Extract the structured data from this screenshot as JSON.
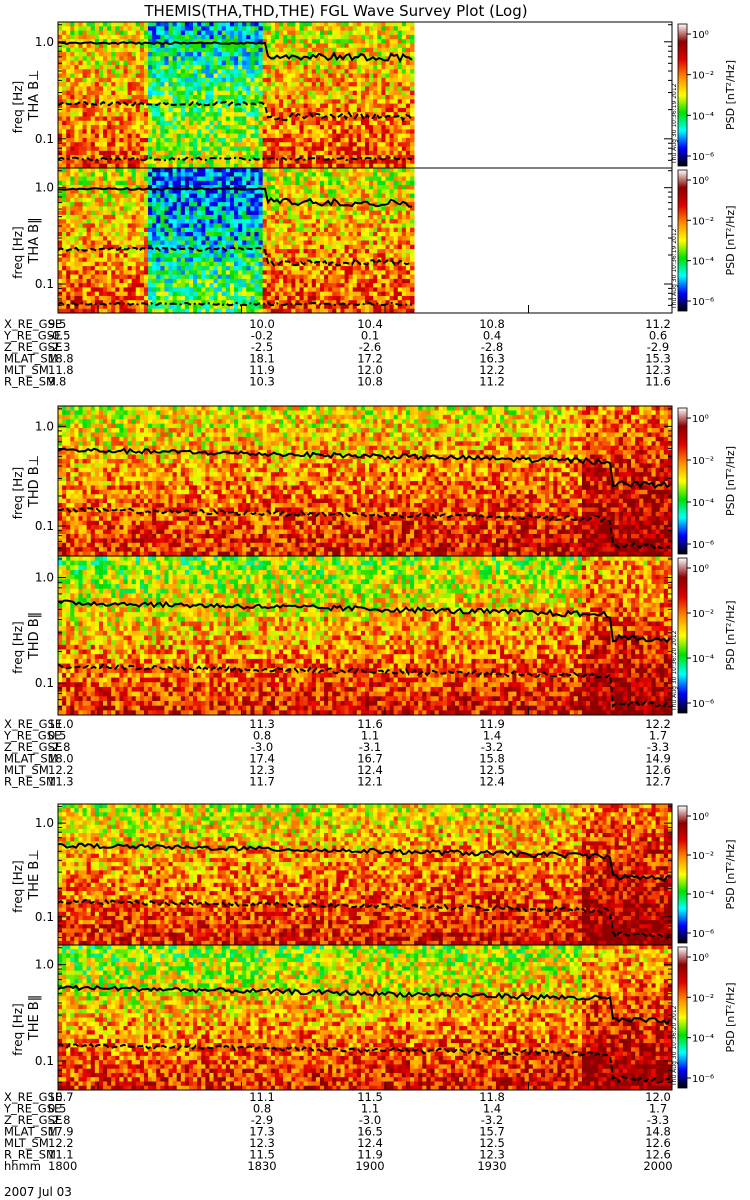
{
  "title": "THEMIS(THA,THD,THE) FGL Wave Survey Plot (Log)",
  "footer_date": "2007 Jul 03",
  "colorbar": {
    "label": "PSD [nT²/Hz]",
    "ticks": [
      "10⁰",
      "10⁻²",
      "10⁻⁴",
      "10⁻⁶"
    ],
    "stops": [
      "#ffffff",
      "#8b0000",
      "#e00000",
      "#ff8c00",
      "#ffff00",
      "#00e000",
      "#00ffff",
      "#0000ff",
      "#000000"
    ]
  },
  "freq_ticks": [
    "1.0",
    "0.1"
  ],
  "chart_data": [
    {
      "type": "heatmap",
      "probe": "THA",
      "panels": [
        {
          "ylabel": "THA B⊥",
          "yunit": "freq [Hz]",
          "timestamp": "Thu Aug 30 10:36:19 2012"
        },
        {
          "ylabel": "THA B‖",
          "yunit": "freq [Hz]",
          "timestamp": "Thu Aug 30 10:36:19 2012"
        }
      ],
      "yrange_hz": [
        0.05,
        1.6
      ],
      "data_coverage_fraction": 0.58,
      "ephemeris": [
        {
          "label": "X_RE_GSE",
          "values": [
            "9.5",
            "10.0",
            "10.4",
            "10.8",
            "11.2"
          ]
        },
        {
          "label": "Y_RE_GSE",
          "values": [
            "-0.5",
            "-0.2",
            "0.1",
            "0.4",
            "0.6"
          ]
        },
        {
          "label": "Z_RE_GSE",
          "values": [
            "-2.3",
            "-2.5",
            "-2.6",
            "-2.8",
            "-2.9"
          ]
        },
        {
          "label": "MLAT_SM",
          "values": [
            "18.8",
            "18.1",
            "17.2",
            "16.3",
            "15.3"
          ]
        },
        {
          "label": "MLT_SM",
          "values": [
            "11.8",
            "11.9",
            "12.0",
            "12.2",
            "12.3"
          ]
        },
        {
          "label": "R_RE_SM",
          "values": [
            "9.8",
            "10.3",
            "10.8",
            "11.2",
            "11.6"
          ]
        }
      ]
    },
    {
      "type": "heatmap",
      "probe": "THD",
      "panels": [
        {
          "ylabel": "THD B⊥",
          "yunit": "freq [Hz]",
          "timestamp": ""
        },
        {
          "ylabel": "THD B‖",
          "yunit": "freq [Hz]",
          "timestamp": "Thu Aug 30 10:36:20 2012"
        }
      ],
      "yrange_hz": [
        0.05,
        1.6
      ],
      "data_coverage_fraction": 1.0,
      "ephemeris": [
        {
          "label": "X_RE_GSE",
          "values": [
            "11.0",
            "11.3",
            "11.6",
            "11.9",
            "12.2"
          ]
        },
        {
          "label": "Y_RE_GSE",
          "values": [
            "0.5",
            "0.8",
            "1.1",
            "1.4",
            "1.7"
          ]
        },
        {
          "label": "Z_RE_GSE",
          "values": [
            "-2.8",
            "-3.0",
            "-3.1",
            "-3.2",
            "-3.3"
          ]
        },
        {
          "label": "MLAT_SM",
          "values": [
            "18.0",
            "17.4",
            "16.7",
            "15.8",
            "14.9"
          ]
        },
        {
          "label": "MLT_SM",
          "values": [
            "12.2",
            "12.3",
            "12.4",
            "12.5",
            "12.6"
          ]
        },
        {
          "label": "R_RE_SM",
          "values": [
            "11.3",
            "11.7",
            "12.1",
            "12.4",
            "12.7"
          ]
        }
      ]
    },
    {
      "type": "heatmap",
      "probe": "THE",
      "panels": [
        {
          "ylabel": "THE B⊥",
          "yunit": "freq [Hz]",
          "timestamp": ""
        },
        {
          "ylabel": "THE B‖",
          "yunit": "freq [Hz]",
          "timestamp": "Thu Aug 30 10:36:20 2012"
        }
      ],
      "yrange_hz": [
        0.05,
        1.6
      ],
      "data_coverage_fraction": 1.0,
      "ephemeris": [
        {
          "label": "X_RE_GSE",
          "values": [
            "10.7",
            "11.1",
            "11.5",
            "11.8",
            "12.0"
          ]
        },
        {
          "label": "Y_RE_GSE",
          "values": [
            "0.5",
            "0.8",
            "1.1",
            "1.4",
            "1.7"
          ]
        },
        {
          "label": "Z_RE_GSE",
          "values": [
            "-2.8",
            "-2.9",
            "-3.0",
            "-3.2",
            "-3.3"
          ]
        },
        {
          "label": "MLAT_SM",
          "values": [
            "17.9",
            "17.3",
            "16.5",
            "15.7",
            "14.8"
          ]
        },
        {
          "label": "MLT_SM",
          "values": [
            "12.2",
            "12.3",
            "12.4",
            "12.5",
            "12.6"
          ]
        },
        {
          "label": "R_RE_SM",
          "values": [
            "11.1",
            "11.5",
            "11.9",
            "12.3",
            "12.6"
          ]
        },
        {
          "label": "hhmm",
          "values": [
            "1800",
            "1830",
            "1900",
            "1930",
            "2000"
          ]
        }
      ]
    }
  ]
}
